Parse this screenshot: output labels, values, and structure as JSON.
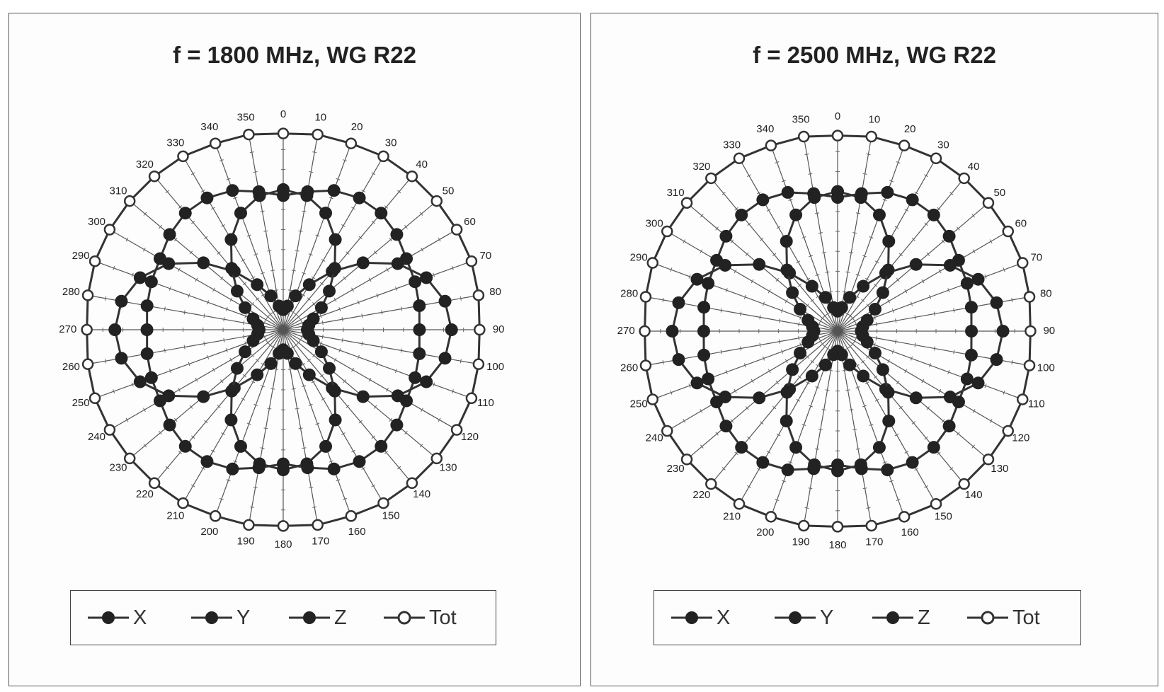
{
  "colors": {
    "series_fill": "#222222",
    "line": "#333333",
    "tot_fill": "#ffffff",
    "background": "#ffffff"
  },
  "chart_data": [
    {
      "type": "polar",
      "title": "f = 1800 MHz, WG R22",
      "angle_labels": [
        "0",
        "10",
        "20",
        "30",
        "40",
        "50",
        "60",
        "70",
        "80",
        "90",
        "100",
        "110",
        "120",
        "130",
        "140",
        "150",
        "160",
        "170",
        "180",
        "190",
        "200",
        "210",
        "220",
        "230",
        "240",
        "250",
        "260",
        "270",
        "280",
        "290",
        "300",
        "310",
        "320",
        "330",
        "340",
        "350"
      ],
      "angles_deg": [
        0,
        10,
        20,
        30,
        40,
        50,
        60,
        70,
        80,
        90,
        100,
        110,
        120,
        130,
        140,
        150,
        160,
        170,
        180,
        190,
        200,
        210,
        220,
        230,
        240,
        250,
        260,
        270,
        280,
        290,
        300,
        310,
        320,
        330,
        340,
        350
      ],
      "rlim": [
        0,
        1
      ],
      "legend_placement": "bottom",
      "series": [
        {
          "name": "X",
          "marker": "filled",
          "values": [
            0.1,
            0.12,
            0.18,
            0.26,
            0.38,
            0.52,
            0.66,
            0.76,
            0.82,
            0.84,
            0.82,
            0.76,
            0.66,
            0.52,
            0.38,
            0.26,
            0.18,
            0.12,
            0.1,
            0.12,
            0.18,
            0.26,
            0.38,
            0.52,
            0.66,
            0.76,
            0.82,
            0.84,
            0.82,
            0.76,
            0.66,
            0.52,
            0.38,
            0.26,
            0.18,
            0.12
          ]
        },
        {
          "name": "Y",
          "marker": "filled",
          "values": [
            0.7,
            0.68,
            0.62,
            0.52,
            0.4,
            0.3,
            0.22,
            0.16,
            0.13,
            0.12,
            0.13,
            0.16,
            0.22,
            0.3,
            0.4,
            0.52,
            0.62,
            0.68,
            0.7,
            0.68,
            0.62,
            0.52,
            0.4,
            0.3,
            0.22,
            0.16,
            0.13,
            0.12,
            0.13,
            0.16,
            0.22,
            0.3,
            0.4,
            0.52,
            0.62,
            0.68
          ]
        },
        {
          "name": "Z",
          "marker": "filled",
          "values": [
            0.67,
            0.7,
            0.74,
            0.76,
            0.76,
            0.74,
            0.71,
            0.7,
            0.69,
            0.68,
            0.69,
            0.7,
            0.71,
            0.74,
            0.76,
            0.76,
            0.74,
            0.7,
            0.67,
            0.7,
            0.74,
            0.76,
            0.76,
            0.74,
            0.71,
            0.7,
            0.69,
            0.68,
            0.69,
            0.7,
            0.71,
            0.74,
            0.76,
            0.76,
            0.74,
            0.7
          ]
        },
        {
          "name": "Tot",
          "marker": "open",
          "values": [
            0.98,
            0.99,
            0.99,
            1.0,
            1.0,
            1.0,
            1.0,
            1.0,
            0.99,
            0.98,
            0.99,
            1.0,
            1.0,
            1.0,
            1.0,
            1.0,
            0.99,
            0.99,
            0.98,
            0.99,
            0.99,
            1.0,
            1.0,
            1.0,
            1.0,
            1.0,
            0.99,
            0.98,
            0.99,
            1.0,
            1.0,
            1.0,
            1.0,
            1.0,
            0.99,
            0.99
          ]
        }
      ]
    },
    {
      "type": "polar",
      "title": "f = 2500 MHz, WG R22",
      "angle_labels": [
        "0",
        "10",
        "20",
        "30",
        "40",
        "50",
        "60",
        "70",
        "80",
        "90",
        "100",
        "110",
        "120",
        "130",
        "140",
        "150",
        "160",
        "170",
        "180",
        "190",
        "200",
        "210",
        "220",
        "230",
        "240",
        "250",
        "260",
        "270",
        "280",
        "290",
        "300",
        "310",
        "320",
        "330",
        "340",
        "350"
      ],
      "angles_deg": [
        0,
        10,
        20,
        30,
        40,
        50,
        60,
        70,
        80,
        90,
        100,
        110,
        120,
        130,
        140,
        150,
        160,
        170,
        180,
        190,
        200,
        210,
        220,
        230,
        240,
        250,
        260,
        270,
        280,
        290,
        300,
        310,
        320,
        330,
        340,
        350
      ],
      "rlim": [
        0,
        1
      ],
      "legend_placement": "bottom",
      "series": [
        {
          "name": "X",
          "marker": "filled",
          "values": [
            0.1,
            0.12,
            0.18,
            0.26,
            0.38,
            0.52,
            0.66,
            0.76,
            0.82,
            0.84,
            0.82,
            0.76,
            0.66,
            0.52,
            0.38,
            0.26,
            0.18,
            0.12,
            0.1,
            0.12,
            0.18,
            0.26,
            0.38,
            0.52,
            0.66,
            0.76,
            0.82,
            0.84,
            0.82,
            0.76,
            0.66,
            0.52,
            0.38,
            0.26,
            0.18,
            0.12
          ]
        },
        {
          "name": "Y",
          "marker": "filled",
          "values": [
            0.7,
            0.68,
            0.62,
            0.52,
            0.4,
            0.3,
            0.22,
            0.16,
            0.13,
            0.12,
            0.13,
            0.16,
            0.22,
            0.3,
            0.4,
            0.52,
            0.62,
            0.68,
            0.7,
            0.68,
            0.62,
            0.52,
            0.4,
            0.3,
            0.22,
            0.16,
            0.13,
            0.12,
            0.13,
            0.16,
            0.22,
            0.3,
            0.4,
            0.52,
            0.62,
            0.68
          ]
        },
        {
          "name": "Z",
          "marker": "filled",
          "values": [
            0.67,
            0.7,
            0.74,
            0.76,
            0.76,
            0.74,
            0.71,
            0.7,
            0.69,
            0.68,
            0.69,
            0.7,
            0.71,
            0.74,
            0.76,
            0.76,
            0.74,
            0.7,
            0.67,
            0.7,
            0.74,
            0.76,
            0.76,
            0.74,
            0.71,
            0.7,
            0.69,
            0.68,
            0.69,
            0.7,
            0.71,
            0.74,
            0.76,
            0.76,
            0.74,
            0.7
          ]
        },
        {
          "name": "Tot",
          "marker": "open",
          "values": [
            0.98,
            0.99,
            0.99,
            1.0,
            1.0,
            1.0,
            1.0,
            1.0,
            0.99,
            0.98,
            0.99,
            1.0,
            1.0,
            1.0,
            1.0,
            1.0,
            0.99,
            0.99,
            0.98,
            0.99,
            0.99,
            1.0,
            1.0,
            1.0,
            1.0,
            1.0,
            0.99,
            0.98,
            0.99,
            1.0,
            1.0,
            1.0,
            1.0,
            1.0,
            0.99,
            0.99
          ]
        }
      ]
    }
  ]
}
